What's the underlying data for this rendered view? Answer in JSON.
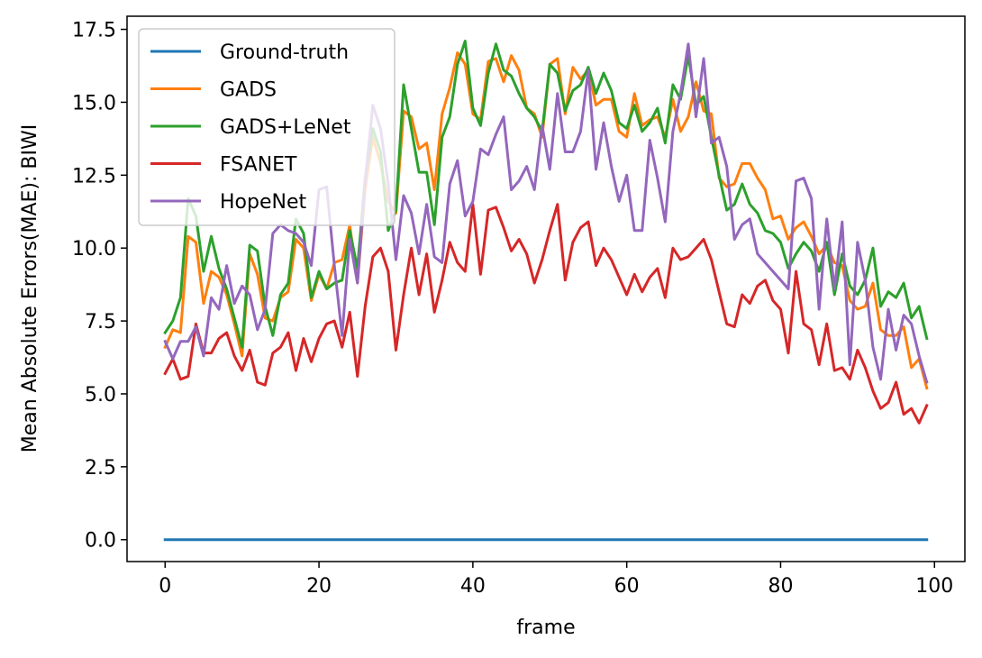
{
  "chart_data": {
    "type": "line",
    "title": "",
    "xlabel": "frame",
    "ylabel": "Mean Absolute Errors(MAE): BIWI",
    "xlim": [
      -4.95,
      103.95
    ],
    "ylim": [
      -0.75,
      17.95
    ],
    "xticks": [
      0,
      20,
      40,
      60,
      80,
      100
    ],
    "xtick_labels": [
      "0",
      "20",
      "40",
      "60",
      "80",
      "100"
    ],
    "yticks": [
      0.0,
      2.5,
      5.0,
      7.5,
      10.0,
      12.5,
      15.0,
      17.5
    ],
    "ytick_labels": [
      "0.0",
      "2.5",
      "5.0",
      "7.5",
      "10.0",
      "12.5",
      "15.0",
      "17.5"
    ],
    "grid": false,
    "legend_position": "top-left",
    "x": [
      0,
      1,
      2,
      3,
      4,
      5,
      6,
      7,
      8,
      9,
      10,
      11,
      12,
      13,
      14,
      15,
      16,
      17,
      18,
      19,
      20,
      21,
      22,
      23,
      24,
      25,
      26,
      27,
      28,
      29,
      30,
      31,
      32,
      33,
      34,
      35,
      36,
      37,
      38,
      39,
      40,
      41,
      42,
      43,
      44,
      45,
      46,
      47,
      48,
      49,
      50,
      51,
      52,
      53,
      54,
      55,
      56,
      57,
      58,
      59,
      60,
      61,
      62,
      63,
      64,
      65,
      66,
      67,
      68,
      69,
      70,
      71,
      72,
      73,
      74,
      75,
      76,
      77,
      78,
      79,
      80,
      81,
      82,
      83,
      84,
      85,
      86,
      87,
      88,
      89,
      90,
      91,
      92,
      93,
      94,
      95,
      96,
      97,
      98,
      99
    ],
    "series": [
      {
        "name": "Ground-truth",
        "color": "#1f77b4",
        "values": [
          0,
          0,
          0,
          0,
          0,
          0,
          0,
          0,
          0,
          0,
          0,
          0,
          0,
          0,
          0,
          0,
          0,
          0,
          0,
          0,
          0,
          0,
          0,
          0,
          0,
          0,
          0,
          0,
          0,
          0,
          0,
          0,
          0,
          0,
          0,
          0,
          0,
          0,
          0,
          0,
          0,
          0,
          0,
          0,
          0,
          0,
          0,
          0,
          0,
          0,
          0,
          0,
          0,
          0,
          0,
          0,
          0,
          0,
          0,
          0,
          0,
          0,
          0,
          0,
          0,
          0,
          0,
          0,
          0,
          0,
          0,
          0,
          0,
          0,
          0,
          0,
          0,
          0,
          0,
          0,
          0,
          0,
          0,
          0,
          0,
          0,
          0,
          0,
          0,
          0,
          0,
          0,
          0,
          0,
          0,
          0,
          0,
          0,
          0,
          0
        ]
      },
      {
        "name": "GADS",
        "color": "#ff7f0e",
        "values": [
          6.6,
          7.2,
          7.1,
          10.4,
          10.2,
          8.1,
          9.2,
          9.0,
          8.4,
          7.4,
          6.3,
          9.8,
          9.1,
          7.6,
          7.5,
          8.3,
          8.5,
          10.3,
          10.0,
          8.2,
          9.1,
          8.6,
          9.5,
          9.6,
          10.8,
          8.8,
          12.0,
          13.8,
          12.9,
          11.6,
          11.2,
          14.7,
          14.5,
          13.4,
          13.6,
          12.0,
          14.6,
          15.5,
          16.7,
          16.3,
          14.6,
          14.4,
          16.4,
          16.5,
          15.7,
          16.6,
          16.1,
          14.8,
          14.6,
          13.8,
          16.3,
          16.5,
          14.6,
          16.2,
          15.8,
          16.1,
          14.9,
          15.1,
          15.1,
          14.0,
          13.8,
          15.3,
          14.2,
          14.4,
          14.5,
          13.8,
          15.1,
          14.0,
          14.5,
          15.7,
          14.7,
          14.6,
          12.4,
          12.1,
          12.2,
          12.9,
          12.9,
          12.4,
          12.0,
          11.0,
          11.1,
          10.3,
          10.7,
          10.9,
          10.4,
          9.8,
          10.1,
          9.5,
          9.4,
          8.2,
          7.9,
          8.0,
          8.8,
          7.2,
          7.0,
          7.0,
          7.3,
          5.9,
          6.2,
          5.2
        ]
      },
      {
        "name": "GADS+LeNet",
        "color": "#2ca02c",
        "values": [
          7.1,
          7.5,
          8.3,
          11.7,
          11.1,
          9.2,
          10.4,
          9.3,
          8.6,
          7.6,
          6.6,
          10.1,
          9.9,
          8.0,
          7.0,
          8.4,
          8.8,
          11.0,
          10.5,
          8.3,
          9.2,
          8.6,
          8.8,
          8.9,
          10.6,
          9.3,
          12.4,
          14.1,
          13.3,
          10.6,
          11.3,
          15.6,
          14.1,
          12.6,
          12.6,
          10.8,
          13.8,
          14.5,
          16.3,
          17.1,
          14.8,
          14.2,
          16.0,
          17.0,
          16.1,
          15.9,
          15.3,
          14.8,
          14.5,
          14.0,
          16.3,
          16.0,
          14.7,
          15.4,
          15.6,
          16.2,
          15.3,
          16.0,
          15.4,
          14.3,
          14.1,
          14.9,
          14.0,
          14.3,
          14.8,
          13.6,
          15.6,
          15.1,
          16.6,
          14.9,
          15.2,
          13.8,
          12.5,
          11.3,
          11.5,
          12.2,
          11.5,
          11.2,
          10.6,
          10.5,
          10.2,
          9.3,
          9.8,
          10.2,
          9.9,
          9.2,
          10.2,
          8.4,
          9.8,
          8.7,
          8.4,
          8.9,
          10.0,
          8.0,
          8.5,
          8.3,
          8.8,
          7.6,
          8.0,
          6.9
        ]
      },
      {
        "name": "FSANET",
        "color": "#d62728",
        "values": [
          5.7,
          6.2,
          5.5,
          5.6,
          7.4,
          6.4,
          6.4,
          6.9,
          7.1,
          6.3,
          5.8,
          6.5,
          5.4,
          5.3,
          6.4,
          6.6,
          7.1,
          5.8,
          6.9,
          6.1,
          6.9,
          7.4,
          7.5,
          6.6,
          7.8,
          5.6,
          8.0,
          9.7,
          10.0,
          9.2,
          6.5,
          8.4,
          10.0,
          8.4,
          9.8,
          7.8,
          8.9,
          10.2,
          9.5,
          9.2,
          11.5,
          9.1,
          11.3,
          11.4,
          10.7,
          9.9,
          10.3,
          9.8,
          8.8,
          9.6,
          10.6,
          11.5,
          8.9,
          10.2,
          10.7,
          10.9,
          9.4,
          10.0,
          9.6,
          9.0,
          8.4,
          9.1,
          8.5,
          9.0,
          9.3,
          8.3,
          10.0,
          9.6,
          9.7,
          10.0,
          10.3,
          9.6,
          8.5,
          7.4,
          7.3,
          8.4,
          8.1,
          8.7,
          8.9,
          8.2,
          7.9,
          6.4,
          9.2,
          7.4,
          7.2,
          6.0,
          7.4,
          5.8,
          5.9,
          5.5,
          6.5,
          5.9,
          5.1,
          4.5,
          4.7,
          5.4,
          4.3,
          4.5,
          4.0,
          4.6
        ]
      },
      {
        "name": "HopeNet",
        "color": "#9467bd",
        "values": [
          6.8,
          6.2,
          6.8,
          6.8,
          7.3,
          6.3,
          8.3,
          7.9,
          9.4,
          8.1,
          8.7,
          8.4,
          7.2,
          7.9,
          10.5,
          10.8,
          10.6,
          10.5,
          10.2,
          9.4,
          12.0,
          12.1,
          9.4,
          7.0,
          10.3,
          8.8,
          12.3,
          14.9,
          14.1,
          12.2,
          9.6,
          11.8,
          11.2,
          9.8,
          11.5,
          9.7,
          9.5,
          12.2,
          13.0,
          11.1,
          11.6,
          13.4,
          13.2,
          13.9,
          14.5,
          12.0,
          12.3,
          12.8,
          12.0,
          14.2,
          12.7,
          15.3,
          13.3,
          13.3,
          14.0,
          16.1,
          12.7,
          14.3,
          12.8,
          11.6,
          12.5,
          10.6,
          10.6,
          13.7,
          12.4,
          10.9,
          14.0,
          15.3,
          17.0,
          14.5,
          16.5,
          13.6,
          13.8,
          12.8,
          10.3,
          10.8,
          11.0,
          9.8,
          9.5,
          9.2,
          8.9,
          8.6,
          12.3,
          12.4,
          11.7,
          7.9,
          11.0,
          8.6,
          10.9,
          6.0,
          10.2,
          8.9,
          6.6,
          5.5,
          7.9,
          6.5,
          7.7,
          7.4,
          6.3,
          5.4
        ]
      }
    ]
  }
}
